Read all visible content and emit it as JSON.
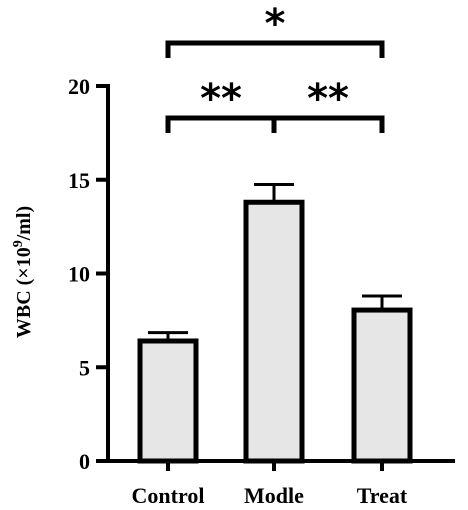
{
  "chart_data": {
    "type": "bar",
    "categories": [
      "Control",
      "Modle",
      "Treat"
    ],
    "values": [
      6.4,
      13.8,
      8.05
    ],
    "errors": [
      0.45,
      0.95,
      0.75
    ],
    "ylabel_main": "WBC (×10",
    "ylabel_sup": "9",
    "ylabel_tail": "/ml)",
    "ylim": [
      0,
      20
    ],
    "yticks": [
      "0",
      "5",
      "10",
      "15",
      "20"
    ],
    "bar_fill": "#e6e6e6",
    "bar_stroke": "#000000",
    "significance": [
      {
        "from": 0,
        "to": 2,
        "label": "*"
      },
      {
        "from": 0,
        "to": 1,
        "label": "**"
      },
      {
        "from": 1,
        "to": 2,
        "label": "**"
      }
    ]
  }
}
